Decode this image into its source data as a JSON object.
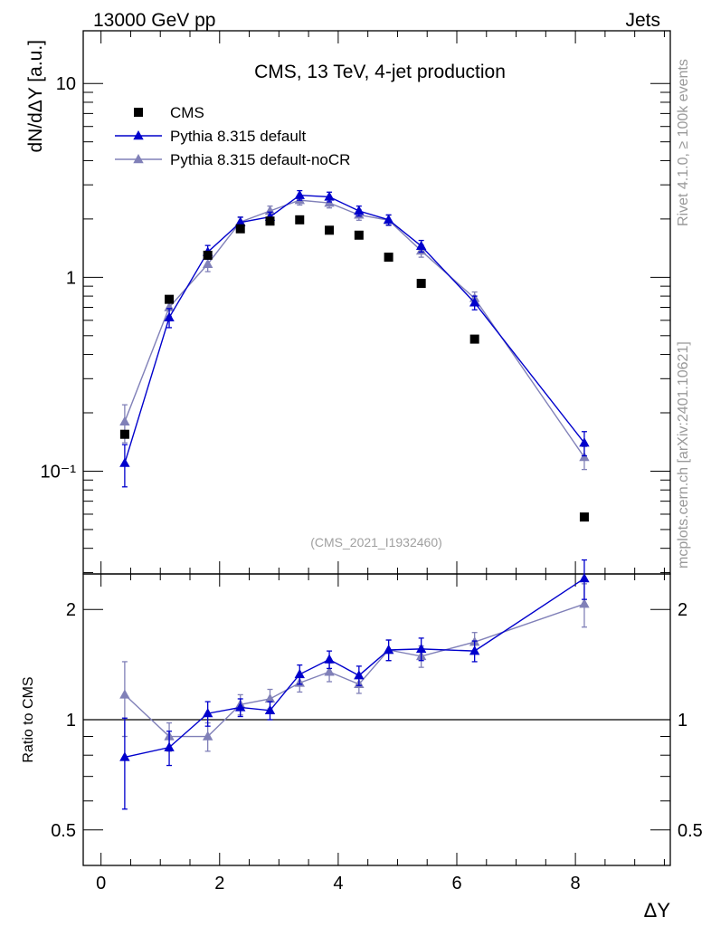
{
  "header": {
    "left": "13000 GeV pp",
    "right": "Jets"
  },
  "side_labels": {
    "top": "Rivet 4.1.0, ≥ 100k events",
    "bottom": "mcplots.cern.ch [arXiv:2401.10621]"
  },
  "colors": {
    "cms": "#000000",
    "pythia_default": "#0000cc",
    "pythia_nocr": "#8080b8",
    "side_text": "#999999",
    "analysis_text": "#a0a0a0"
  },
  "chart_data": [
    {
      "type": "scatter",
      "panel": "main",
      "title": "CMS, 13 TeV, 4-jet production",
      "ylabel": "dN/dΔY [a.u.]",
      "yscale": "log",
      "xlim": [
        -0.3,
        9.6
      ],
      "ylim": [
        0.0295,
        18.7
      ],
      "y_ticks": [
        {
          "value": 10,
          "label": "10"
        },
        {
          "value": 1,
          "label": "1"
        },
        {
          "value": 0.1,
          "label": "10⁻¹"
        }
      ],
      "annotation": "(CMS_2021_I1932460)",
      "legend": {
        "position": "top-left",
        "entries": [
          "CMS",
          "Pythia 8.315 default",
          "Pythia 8.315 default-noCR"
        ]
      },
      "series": [
        {
          "name": "CMS",
          "marker": "square",
          "x": [
            0.4,
            1.15,
            1.8,
            2.35,
            2.85,
            3.35,
            3.85,
            4.35,
            4.85,
            5.4,
            6.3,
            8.15
          ],
          "y": [
            0.155,
            0.77,
            1.3,
            1.78,
            1.95,
            1.98,
            1.75,
            1.65,
            1.27,
            0.93,
            0.48,
            0.058
          ]
        },
        {
          "name": "Pythia 8.315 default",
          "marker": "triangle",
          "x": [
            0.4,
            1.15,
            1.8,
            2.35,
            2.85,
            3.35,
            3.85,
            4.35,
            4.85,
            5.4,
            6.3,
            8.15
          ],
          "y": [
            0.11,
            0.62,
            1.35,
            1.92,
            2.05,
            2.65,
            2.6,
            2.2,
            1.98,
            1.45,
            0.74,
            0.14
          ],
          "yerr": [
            0.027,
            0.07,
            0.11,
            0.12,
            0.12,
            0.15,
            0.15,
            0.13,
            0.12,
            0.1,
            0.06,
            0.02
          ]
        },
        {
          "name": "Pythia 8.315 default-noCR",
          "marker": "triangle",
          "x": [
            0.4,
            1.15,
            1.8,
            2.35,
            2.85,
            3.35,
            3.85,
            4.35,
            4.85,
            5.4,
            6.3,
            8.15
          ],
          "y": [
            0.18,
            0.7,
            1.17,
            1.93,
            2.2,
            2.5,
            2.42,
            2.1,
            1.97,
            1.37,
            0.78,
            0.118
          ],
          "yerr": [
            0.04,
            0.07,
            0.1,
            0.12,
            0.13,
            0.14,
            0.14,
            0.13,
            0.12,
            0.1,
            0.06,
            0.016
          ]
        }
      ]
    },
    {
      "type": "line",
      "panel": "ratio",
      "xlabel": "ΔY",
      "ylabel": "Ratio to CMS",
      "yscale": "log",
      "xlim": [
        -0.3,
        9.6
      ],
      "ylim": [
        0.4,
        2.5
      ],
      "x_ticks": [
        0,
        2,
        4,
        6,
        8
      ],
      "y_ticks": [
        {
          "value": 2,
          "label": "2"
        },
        {
          "value": 1,
          "label": "1"
        },
        {
          "value": 0.5,
          "label": "0.5"
        }
      ],
      "reference_line": 1,
      "series": [
        {
          "name": "Pythia 8.315 default",
          "x": [
            0.4,
            1.15,
            1.8,
            2.35,
            2.85,
            3.35,
            3.85,
            4.35,
            4.85,
            5.4,
            6.3,
            8.15
          ],
          "y": [
            0.79,
            0.84,
            1.04,
            1.08,
            1.06,
            1.33,
            1.46,
            1.32,
            1.55,
            1.56,
            1.54,
            2.43
          ],
          "yerr": [
            0.22,
            0.09,
            0.08,
            0.06,
            0.06,
            0.08,
            0.08,
            0.08,
            0.1,
            0.11,
            0.1,
            0.3
          ]
        },
        {
          "name": "Pythia 8.315 default-noCR",
          "x": [
            0.4,
            1.15,
            1.8,
            2.35,
            2.85,
            3.35,
            3.85,
            4.35,
            4.85,
            5.4,
            6.3,
            8.15
          ],
          "y": [
            1.17,
            0.9,
            0.9,
            1.1,
            1.14,
            1.26,
            1.35,
            1.25,
            1.55,
            1.49,
            1.63,
            2.07
          ],
          "yerr": [
            0.27,
            0.08,
            0.08,
            0.07,
            0.07,
            0.07,
            0.08,
            0.07,
            0.1,
            0.1,
            0.1,
            0.28
          ]
        }
      ]
    }
  ]
}
